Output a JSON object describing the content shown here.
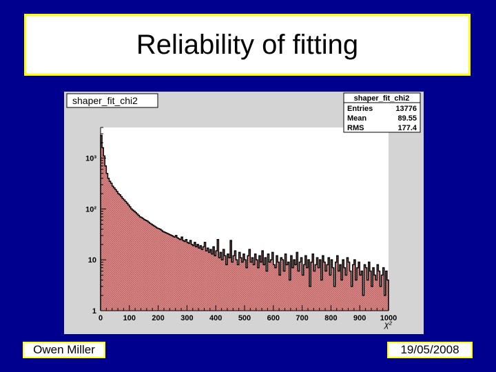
{
  "slide": {
    "title": "Reliability of fitting",
    "author": "Owen Miller",
    "date": "19/05/2008"
  },
  "colors": {
    "background": "#00008f",
    "frame": "#ffff00",
    "hist_fill": "#d98a8a",
    "hist_line": "#000000",
    "canvas": "#d4d4d4"
  },
  "chart_data": {
    "type": "bar",
    "histogram_name": "shaper_fit_chi2",
    "stats": {
      "title": "shaper_fit_chi2",
      "rows": [
        {
          "label": "Entries",
          "value": "13776"
        },
        {
          "label": "Mean",
          "value": "89.55"
        },
        {
          "label": "RMS",
          "value": "177.4"
        }
      ]
    },
    "xlabel": "χ²",
    "ylabel": "",
    "xlim": [
      0,
      1000
    ],
    "ylim": [
      1,
      4000
    ],
    "log_y": true,
    "x_ticks": [
      "0",
      "100",
      "200",
      "300",
      "400",
      "500",
      "600",
      "700",
      "800",
      "900",
      "1000"
    ],
    "y_ticks": [
      {
        "value": 1,
        "label": "1"
      },
      {
        "value": 10,
        "label": "10"
      },
      {
        "value": 100,
        "label": "10²"
      },
      {
        "value": 1000,
        "label": "10³"
      }
    ],
    "bin_width": 5,
    "values": [
      2800,
      1600,
      1100,
      700,
      500,
      400,
      350,
      320,
      280,
      260,
      240,
      220,
      200,
      190,
      175,
      160,
      150,
      140,
      130,
      120,
      110,
      100,
      95,
      90,
      85,
      80,
      75,
      70,
      68,
      65,
      62,
      60,
      58,
      55,
      52,
      50,
      48,
      46,
      44,
      42,
      41,
      40,
      38,
      36,
      35,
      34,
      33,
      32,
      31,
      30,
      29,
      28,
      30,
      27,
      26,
      25,
      28,
      24,
      23,
      25,
      22,
      21,
      24,
      20,
      19,
      22,
      18,
      20,
      17,
      19,
      16,
      18,
      22,
      15,
      17,
      14,
      16,
      13,
      18,
      12,
      15,
      25,
      11,
      14,
      10,
      16,
      12,
      8,
      13,
      11,
      24,
      9,
      12,
      15,
      10,
      8,
      14,
      11,
      9,
      13,
      10,
      7,
      12,
      16,
      9,
      11,
      8,
      13,
      10,
      7,
      12,
      9,
      15,
      8,
      11,
      6,
      13,
      9,
      10,
      14,
      8,
      7,
      12,
      9,
      5,
      11,
      10,
      6,
      13,
      8,
      9,
      4,
      12,
      7,
      10,
      8,
      14,
      6,
      9,
      11,
      5,
      8,
      12,
      7,
      10,
      3,
      9,
      13,
      6,
      8,
      11,
      7,
      10,
      4,
      12,
      9,
      6,
      8,
      11,
      5,
      10,
      7,
      3,
      9,
      12,
      6,
      8,
      4,
      10,
      7,
      5,
      11,
      9,
      6,
      3,
      8,
      10,
      4,
      7,
      9,
      5,
      6,
      2,
      8,
      7,
      4,
      9,
      6,
      3,
      7,
      5,
      4,
      8,
      6,
      3,
      5,
      7,
      2,
      6,
      4
    ]
  }
}
